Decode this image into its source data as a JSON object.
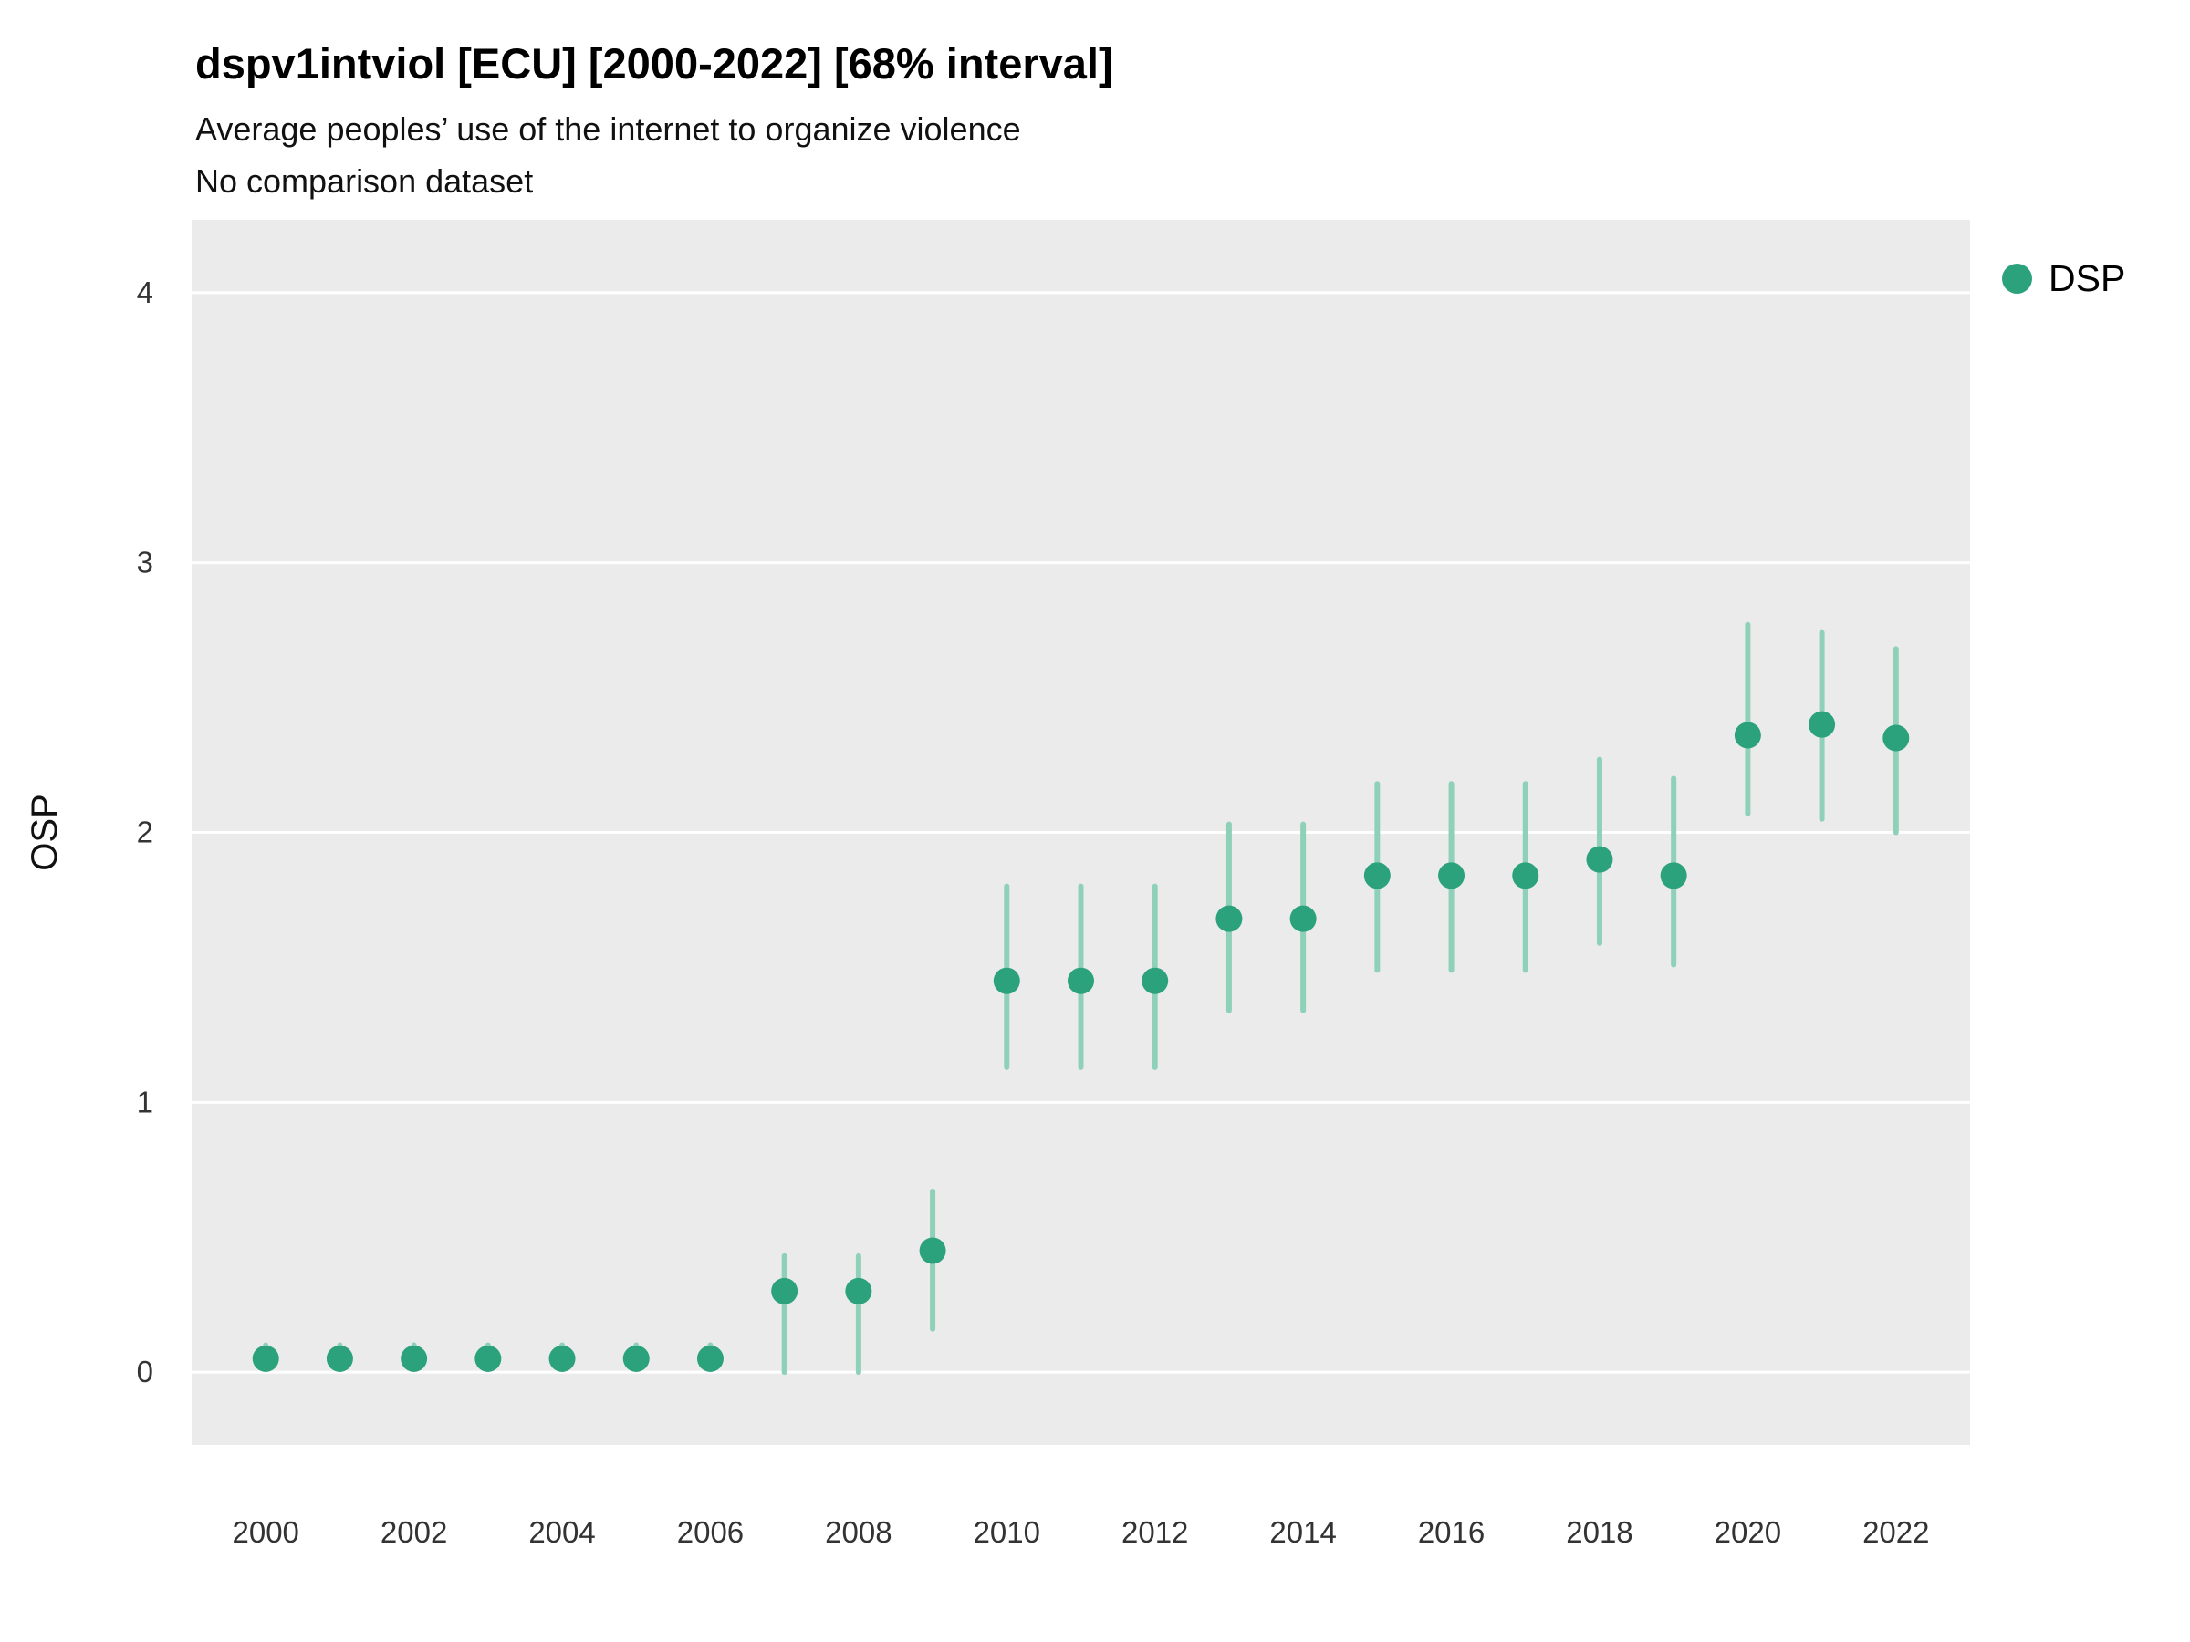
{
  "header": {
    "title": "dspv1intviol [ECU] [2000-2022] [68% interval]",
    "subtitle": "Average peoples’ use of the internet to organize violence",
    "subtitle2": "No comparison dataset"
  },
  "legend": {
    "items": [
      {
        "label": "DSP",
        "color": "#2BA27C"
      }
    ]
  },
  "chart_data": {
    "type": "scatter",
    "variant": "pointrange",
    "title": "dspv1intviol [ECU] [2000-2022] [68% interval]",
    "subtitle": "Average peoples’ use of the internet to organize violence",
    "note": "No comparison dataset",
    "interval": "68%",
    "xlabel": "",
    "ylabel": "OSP",
    "xlim": [
      1999,
      2023
    ],
    "ylim": [
      -0.27,
      4.27
    ],
    "xticks": [
      2000,
      2002,
      2004,
      2006,
      2008,
      2010,
      2012,
      2014,
      2016,
      2018,
      2020,
      2022
    ],
    "yticks": [
      0,
      1,
      2,
      3,
      4
    ],
    "grid": true,
    "legend_position": "right",
    "series": [
      {
        "name": "DSP",
        "x": [
          2000,
          2001,
          2002,
          2003,
          2004,
          2005,
          2006,
          2007,
          2008,
          2009,
          2010,
          2011,
          2012,
          2013,
          2014,
          2015,
          2016,
          2017,
          2018,
          2019,
          2020,
          2021,
          2022
        ],
        "y": [
          0.05,
          0.05,
          0.05,
          0.05,
          0.05,
          0.05,
          0.05,
          0.3,
          0.3,
          0.45,
          1.45,
          1.45,
          1.45,
          1.68,
          1.68,
          1.84,
          1.84,
          1.84,
          1.9,
          1.84,
          2.36,
          2.4,
          2.35
        ],
        "y_lo": [
          0.01,
          0.01,
          0.01,
          0.01,
          0.01,
          0.01,
          0.01,
          0.0,
          0.0,
          0.16,
          1.13,
          1.13,
          1.13,
          1.34,
          1.34,
          1.49,
          1.49,
          1.49,
          1.59,
          1.51,
          2.07,
          2.05,
          2.0
        ],
        "y_hi": [
          0.1,
          0.1,
          0.1,
          0.1,
          0.1,
          0.1,
          0.1,
          0.43,
          0.43,
          0.67,
          1.8,
          1.8,
          1.8,
          2.03,
          2.03,
          2.18,
          2.18,
          2.18,
          2.27,
          2.2,
          2.77,
          2.74,
          2.68
        ]
      }
    ],
    "colors": {
      "point": "#2BA27C",
      "interval": "#8FD1B8",
      "panel": "#EBEBEB",
      "grid": "#FFFFFF",
      "tick_text": "#333333"
    }
  }
}
